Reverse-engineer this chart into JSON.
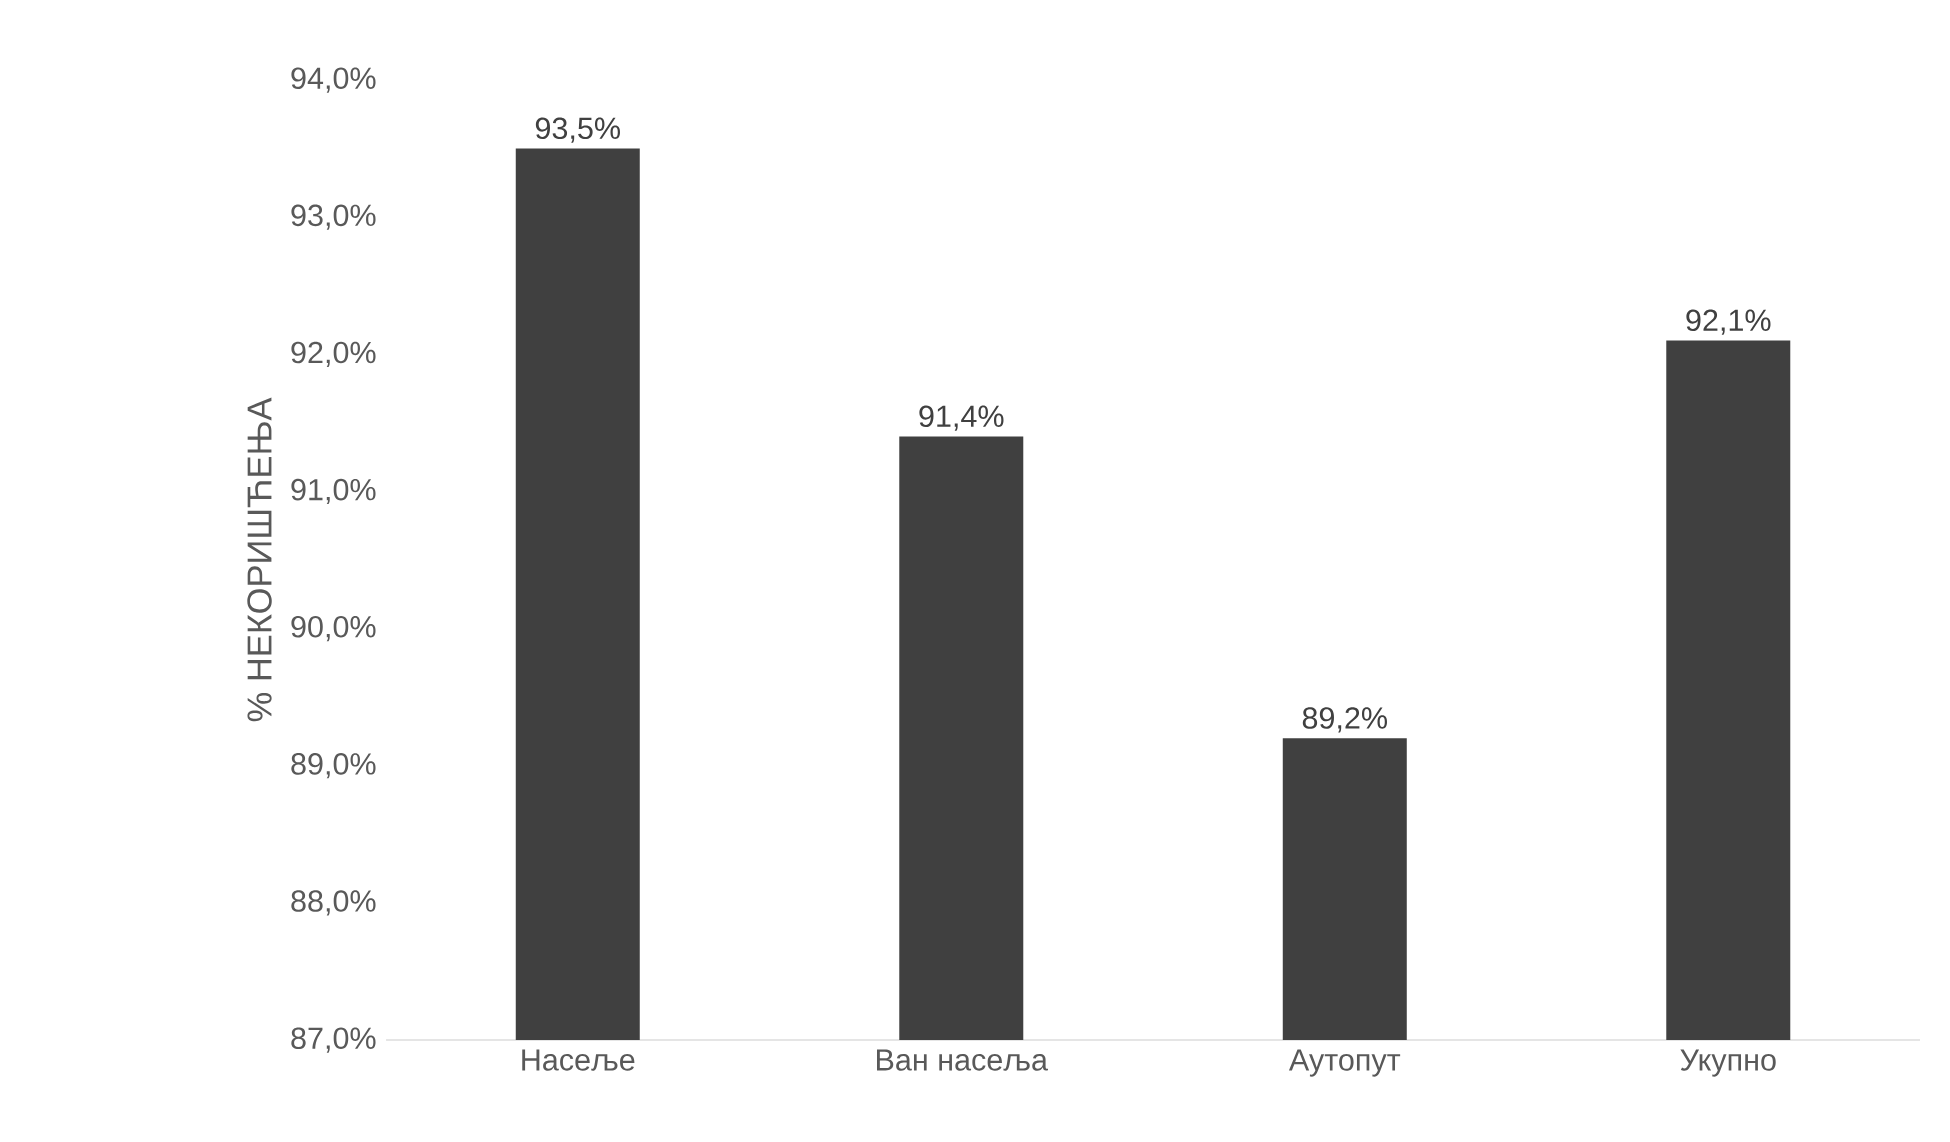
{
  "chart_data": {
    "type": "bar",
    "ylabel": "% НЕКОРИШЋЕЊА",
    "categories": [
      "Насеље",
      "Ван насеља",
      "Аутопут",
      "Укупно"
    ],
    "values": [
      93.5,
      91.4,
      89.2,
      92.1
    ],
    "value_labels": [
      "93,5%",
      "91,4%",
      "89,2%",
      "92,1%"
    ],
    "color": "#404040",
    "ylim": [
      87,
      94
    ],
    "yticks": [
      {
        "value": 87,
        "label": "87,0%"
      },
      {
        "value": 88,
        "label": "88,0%"
      },
      {
        "value": 89,
        "label": "89,0%"
      },
      {
        "value": 90,
        "label": "90,0%"
      },
      {
        "value": 91,
        "label": "91,0%"
      },
      {
        "value": 92,
        "label": "92,0%"
      },
      {
        "value": 93,
        "label": "93,0%"
      },
      {
        "value": 94,
        "label": "94,0%"
      }
    ]
  }
}
